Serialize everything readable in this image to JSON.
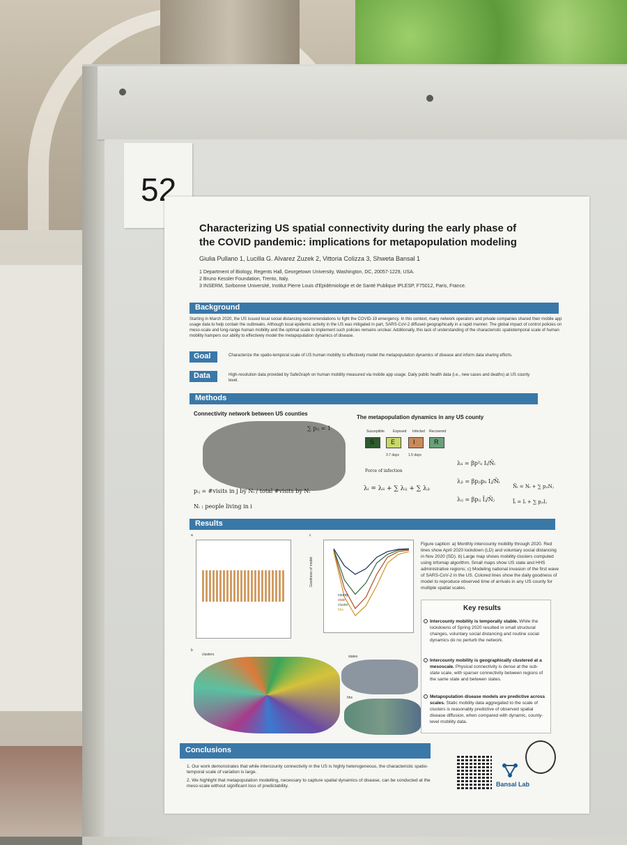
{
  "card_number": "52",
  "poster": {
    "title": "Characterizing US spatial connectivity during the early phase of the COVID pandemic: implications for metapopulation modeling",
    "authors": "Giulia Pullano 1, Lucilla G. Alvarez Zuzek 2, Vittoria Colizza 3, Shweta Bansal 1",
    "affiliations": [
      "1 Department of Biology, Regents Hall, Georgetown University, Washington, DC, 20057-1229, USA.",
      "2 Bruno Kessler Foundation, Trento, Italy.",
      "3 INSERM, Sorbonne Université, Institut Pierre Louis d'Epidémiologie et de Santé Publique IPLESP, F75012, Paris, France."
    ],
    "background": {
      "heading": "Background",
      "text": "Starting in March 2020, the US issued local social distancing recommendations to fight the COVID-19 emergency. In this context, many network operators and private companies shared their mobile app usage data to help contain the outbreaks. Although local epidemic activity in the US was mitigated in part, SARS-CoV-2 diffused geographically in a rapid manner. The global impact of control policies on meso-scale and long-range human mobility and the optimal scale to implement such policies remains unclear. Additionally, this lack of understanding of the characteristic spatiotemporal scale of human mobility hampers our ability to effectively model the metapopulation dynamics of disease."
    },
    "goal": {
      "heading": "Goal",
      "text": "Characterize the spatio-temporal scale of US human mobility to effectively model the metapopulation dynamics of disease and inform data sharing efforts."
    },
    "data": {
      "heading": "Data",
      "text": "High-resolution data provided by SafeGraph on human mobility measured via mobile app usage. Daily public health data (i.e., new cases and deaths) at US county level."
    },
    "methods": {
      "heading": "Methods",
      "left_sub": "Connectivity network between US counties",
      "right_sub": "The metapopulation dynamics in any US county",
      "sum_formula": "∑ pᵢⱼ = 1",
      "pij_formula": "pᵢⱼ = #visits in j by Nᵢ / total #visits by Nᵢ",
      "ni_def": "Nᵢ : people living in i",
      "seir": [
        "S",
        "E",
        "I",
        "R"
      ],
      "seir_labels": [
        "Susceptible",
        "Exposed",
        "Infected",
        "Recovered"
      ],
      "durations": [
        "3.7 days",
        "1.5 days"
      ],
      "force_label": "Force of infection",
      "lambda_formula": "λᵢ = λᵢᵢ + ∑ λᵢⱼ + ∑ λⱼᵢ",
      "lambda_ii": "λᵢᵢ = βp²ᵢᵢ Iᵢ/Ñᵢ",
      "lambda_ji": "λⱼᵢ = βpⱼᵢpᵢᵢ Iⱼ/Ñᵢ",
      "lambda_ij": "λᵢⱼ = βpᵢⱼ Ĩⱼ/Ñⱼ",
      "n_tilde": "Ñᵢ = Nᵢ + ∑ pⱼᵢNⱼ",
      "i_tilde": "Ĩᵢ = Iᵢ + ∑ pⱼᵢIⱼ"
    },
    "results": {
      "heading": "Results",
      "panel_a": "a",
      "panel_b": "b",
      "panel_c": "c",
      "clusters_label": "clusters",
      "states_label": "states",
      "hhs_label": "hhs",
      "chart_c_ylabel": "Goodness of model",
      "chart_c_legend": [
        "county",
        "state",
        "cluster",
        "hhs"
      ],
      "caption": "Figure caption: a) Monthly intercounty mobility through 2020. Red lines show April 2020 lockdown (LD) and voluntary social distancing in Nov 2020 (SD). b) Large map shows mobility clusters computed using infomap algorithm. Small maps show US state and HHS administrative regions; c) Modeling national invasion of the first wave of SARS-CoV-2 in the US. Colored lines show the daily goodness of model to reproduce observed time of arrivals in any US county for multiple spatial scales.",
      "key_title": "Key results",
      "key_items": [
        {
          "bold": "Intercounty mobility is temporally stable.",
          "text": " While the lockdowns of Spring 2020 resulted in small structural changes, voluntary social distancing and routine social dynamics do no perturb the network."
        },
        {
          "bold": "Intercounty mobility is geographically clustered at a mesoscale.",
          "text": " Physical connectivity is dense at the sub-state scale, with sparser connectivity between regions of the same state and between states."
        },
        {
          "bold": "Metapopulation disease models are predictive across scales.",
          "text": " Static mobility data aggregated to the scale of clusters is reasonably predictive of observed spatial disease diffusion, when compared with dynamic, county-level mobility data."
        }
      ]
    },
    "conclusions": {
      "heading": "Conclusions",
      "items": [
        "1. Our work demonstrates that while intercounty connectivity in the US is highly heterogeneous, the characteristic spatio-temporal scale of variation is large.",
        "2. We highlight that metapopulation modelling, necessary to capture spatial dynamics of disease, can be conducted at the meso-scale without significant loss of predictability."
      ]
    },
    "lab_name": "Bansal Lab"
  },
  "colors": {
    "section_bar": "#3a78a8",
    "seir": [
      "#2e5a2e",
      "#c8d86a",
      "#c98a5a",
      "#6aa07a"
    ],
    "chart_lines": [
      "#1a2a5a",
      "#b54a2a",
      "#2e6a3a",
      "#c9962a"
    ]
  },
  "chart_data": {
    "type": "line",
    "ylabel": "Goodness of model",
    "ylim": [
      -3000,
      -500
    ],
    "series": [
      {
        "name": "county",
        "values": [
          -600,
          -1200,
          -1500,
          -1300,
          -900,
          -700,
          -620,
          -600
        ]
      },
      {
        "name": "state",
        "values": [
          -650,
          -2000,
          -2700,
          -2300,
          -1500,
          -900,
          -700,
          -650
        ]
      },
      {
        "name": "cluster",
        "values": [
          -620,
          -1700,
          -2200,
          -1800,
          -1100,
          -800,
          -650,
          -620
        ]
      },
      {
        "name": "hhs",
        "values": [
          -700,
          -2300,
          -2950,
          -2600,
          -1900,
          -1100,
          -800,
          -700
        ]
      }
    ]
  }
}
